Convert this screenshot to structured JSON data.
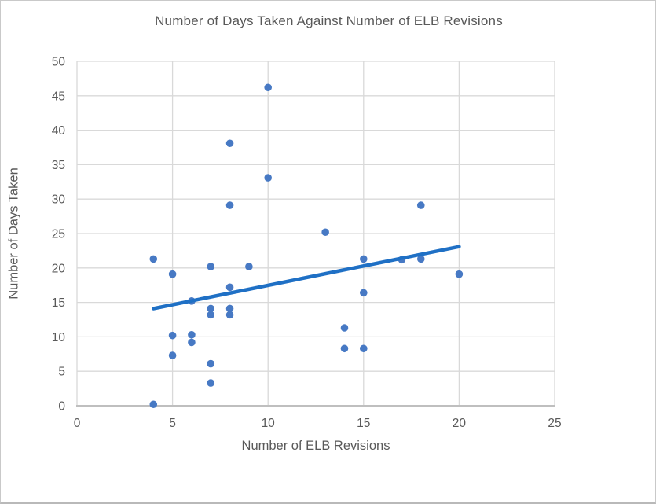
{
  "frame": {
    "background": "#ffffff",
    "border_color": "#c9c9c9"
  },
  "chart_data": {
    "type": "scatter",
    "title": "Number of Days Taken Against Number of ELB Revisions",
    "xlabel": "Number of ELB Revisions",
    "ylabel": "Number of Days Taken",
    "xlim": [
      0,
      25
    ],
    "ylim": [
      0,
      50
    ],
    "x_ticks": [
      0,
      5,
      10,
      15,
      20,
      25
    ],
    "y_ticks": [
      0,
      5,
      10,
      15,
      20,
      25,
      30,
      35,
      40,
      45,
      50
    ],
    "grid": true,
    "legend": false,
    "series": [
      {
        "name": "Days Taken",
        "points": [
          [
            4,
            0.2
          ],
          [
            4,
            21.3
          ],
          [
            5,
            7.3
          ],
          [
            5,
            10.2
          ],
          [
            5,
            19.1
          ],
          [
            6,
            9.2
          ],
          [
            6,
            10.3
          ],
          [
            6,
            15.2
          ],
          [
            7,
            3.3
          ],
          [
            7,
            6.1
          ],
          [
            7,
            13.2
          ],
          [
            7,
            14.1
          ],
          [
            7,
            20.2
          ],
          [
            8,
            13.2
          ],
          [
            8,
            14.1
          ],
          [
            8,
            17.2
          ],
          [
            8,
            29.1
          ],
          [
            8,
            38.1
          ],
          [
            9,
            20.2
          ],
          [
            10,
            33.1
          ],
          [
            10,
            46.2
          ],
          [
            13,
            25.2
          ],
          [
            14,
            8.3
          ],
          [
            14,
            11.3
          ],
          [
            15,
            8.3
          ],
          [
            15,
            16.4
          ],
          [
            15,
            21.3
          ],
          [
            17,
            21.2
          ],
          [
            18,
            21.3
          ],
          [
            18,
            29.1
          ],
          [
            20,
            19.1
          ]
        ]
      }
    ],
    "trendline": {
      "type": "linear",
      "x_start": 4,
      "y_start": 14.1,
      "x_end": 20,
      "y_end": 23.1
    },
    "colors": {
      "marker": "#4779c4",
      "trendline": "#1f70c5",
      "gridline": "#d9d9d9",
      "axis_line": "#bfbfbf",
      "text": "#595959"
    }
  }
}
